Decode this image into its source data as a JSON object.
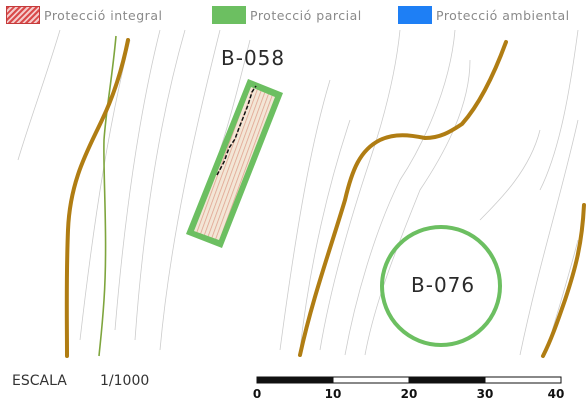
{
  "legend": {
    "integral": {
      "label": "Protecció integral",
      "color": "#d94a4a",
      "icon": "hatched-red-swatch"
    },
    "parcial": {
      "label": "Protecció parcial",
      "color": "#6cbf61",
      "icon": "green-swatch"
    },
    "ambiental": {
      "label": "Protecció ambiental",
      "color": "#1e7ff5",
      "icon": "blue-swatch"
    }
  },
  "features": {
    "b058": {
      "label": "B-058",
      "protection": "integral + parcial"
    },
    "b076": {
      "label": "B-076",
      "protection": "parcial"
    }
  },
  "scale": {
    "label": "ESCALA",
    "ratio": "1/1000",
    "ticks": [
      "0",
      "10",
      "20",
      "30",
      "40"
    ]
  },
  "colors": {
    "road": "#b07d13",
    "contour": "#cfcfcf",
    "parcial_border": "#6cbf61",
    "hatch": "#e8a8a0"
  }
}
